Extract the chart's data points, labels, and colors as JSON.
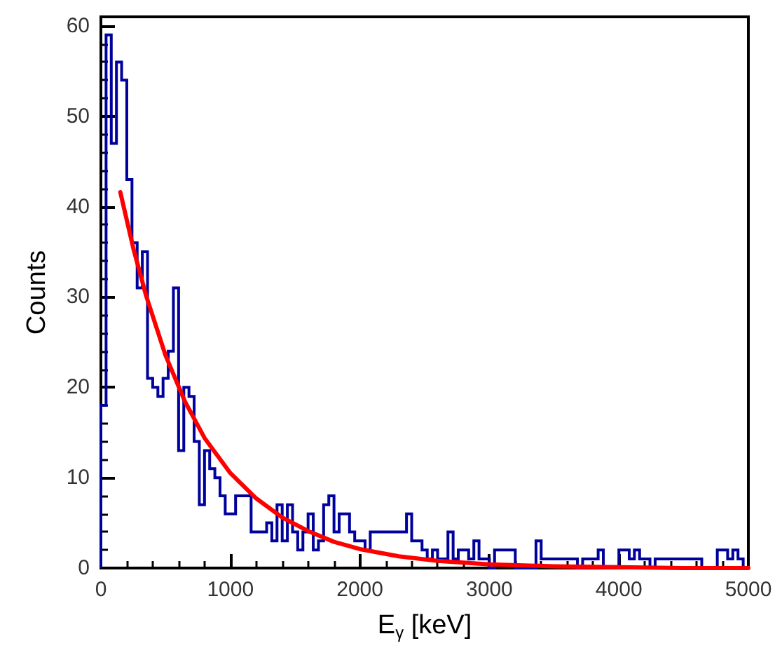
{
  "chart_data": {
    "type": "histogram",
    "xlabel": "E$_{γ}$ [keV]",
    "ylabel": "Counts",
    "xlim": [
      0,
      5000
    ],
    "xticks": [
      0,
      1000,
      2000,
      3000,
      4000,
      5000
    ],
    "ylim": [
      0,
      61
    ],
    "yticks": [
      0,
      10,
      20,
      30,
      40,
      50,
      60
    ],
    "bins": [
      0,
      40,
      80,
      120,
      160,
      200,
      240,
      280,
      320,
      360,
      400,
      440,
      480,
      520,
      560,
      600,
      640,
      680,
      720,
      760,
      800,
      840,
      880,
      920,
      960,
      1000,
      1040,
      1080,
      1120,
      1160,
      1200,
      1240,
      1280,
      1320,
      1360,
      1400,
      1440,
      1480,
      1520,
      1560,
      1600,
      1640,
      1680,
      1720,
      1760,
      1800,
      1840,
      1880,
      1920,
      1960,
      2000,
      2040,
      2080,
      2120,
      2160,
      2200,
      2240,
      2280,
      2320,
      2360,
      2400,
      2440,
      2480,
      2520,
      2560,
      2600,
      2640,
      2680,
      2720,
      2760,
      2800,
      2840,
      2880,
      2920,
      2960,
      3000,
      3040,
      3080,
      3120,
      3160,
      3200,
      3240,
      3280,
      3320,
      3360,
      3400,
      3440,
      3480,
      3520,
      3560,
      3600,
      3640,
      3680,
      3720,
      3760,
      3800,
      3840,
      3880,
      3920,
      3960,
      4000,
      4040,
      4080,
      4120,
      4160,
      4200,
      4240,
      4280,
      4320,
      4360,
      4400,
      4440,
      4480,
      4520,
      4560,
      4600,
      4640,
      4680,
      4720,
      4760,
      4800,
      4840,
      4880,
      4920,
      4960,
      5000
    ],
    "series": [
      {
        "color": "#00009c",
        "values": [
          18,
          59,
          47,
          56,
          54,
          43,
          36,
          31,
          35,
          21,
          20,
          19,
          21,
          24,
          31,
          13,
          20,
          19,
          14,
          7,
          13,
          11,
          10,
          8,
          6,
          6,
          8,
          8,
          8,
          4,
          4,
          4,
          5,
          3,
          7,
          3,
          7,
          4,
          2,
          4,
          6,
          2,
          3,
          7,
          8,
          4,
          6,
          6,
          4,
          3,
          3,
          2,
          4,
          4,
          4,
          4,
          4,
          4,
          4,
          6,
          3,
          3,
          2,
          1,
          2,
          1,
          1,
          4,
          1,
          2,
          2,
          1,
          3,
          1,
          1,
          0,
          2,
          2,
          2,
          2,
          0,
          0,
          0,
          0,
          3,
          1,
          1,
          1,
          1,
          1,
          1,
          1,
          0,
          1,
          1,
          1,
          2,
          0,
          0,
          0,
          2,
          2,
          1,
          2,
          1,
          1,
          0,
          1,
          1,
          1,
          1,
          1,
          1,
          1,
          1,
          1,
          0,
          0,
          0,
          2,
          2,
          1,
          2,
          1,
          0
        ]
      },
      {
        "type": "line",
        "color": "#ff0000",
        "x": [
          150,
          250,
          350,
          500,
          650,
          800,
          1000,
          1200,
          1400,
          1600,
          1800,
          2000,
          2300,
          2600,
          3000,
          3500,
          4000,
          4500,
          5000
        ],
        "values": [
          41.6,
          35.4,
          30.1,
          23.5,
          18.4,
          14.4,
          10.5,
          7.7,
          5.6,
          4.1,
          2.9,
          2.1,
          1.3,
          0.8,
          0.4,
          0.2,
          0.1,
          0,
          0
        ]
      }
    ]
  }
}
